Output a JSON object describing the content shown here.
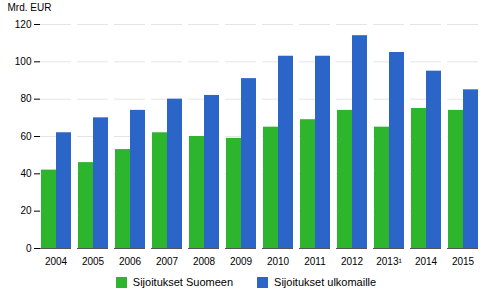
{
  "chart_data": {
    "type": "bar",
    "categories": [
      "2004",
      "2005",
      "2006",
      "2007",
      "2008",
      "2009",
      "2010",
      "2011",
      "2012",
      "2013¹",
      "2014",
      "2015"
    ],
    "series": [
      {
        "name": "Sijoitukset Suomeen",
        "color": "#2db52d",
        "values": [
          42,
          46,
          53,
          62,
          60,
          59,
          65,
          69,
          74,
          65,
          75,
          74
        ]
      },
      {
        "name": "Sijoitukset ulkomaille",
        "color": "#2b65c8",
        "values": [
          62,
          70,
          74,
          80,
          82,
          91,
          103,
          103,
          114,
          105,
          95,
          85
        ]
      }
    ],
    "ylabel": "Mrd. EUR",
    "ylim": [
      0,
      120
    ],
    "yticks": [
      0,
      20,
      40,
      60,
      80,
      100,
      120
    ],
    "grid": true,
    "legend": "bottom"
  }
}
